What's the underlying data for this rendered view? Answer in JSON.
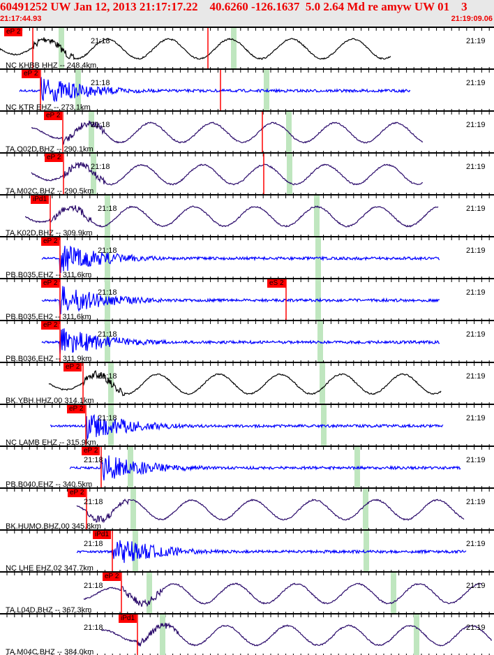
{
  "header": {
    "title": "60491252 UW Jan 12, 2013 21:17:17.22    40.6260 -126.1637  5.0 2.64 Md re amyw UW 01    3",
    "start_time": "21:17:44.93",
    "end_time": "21:19:09.06"
  },
  "colors": {
    "pick": "#ff0000",
    "phase_window": "#bfe6bf",
    "black": "#000000",
    "blue": "#0000ff",
    "purple": "#2a0a6a"
  },
  "minute_labels": [
    "21:18",
    "21:19"
  ],
  "traces": [
    {
      "label": "NC KHBB HHZ -- 248.4km",
      "pick": "eP 2",
      "color": "black"
    },
    {
      "label": "NC KTR EHZ -- 273.1km",
      "pick": "eP 2",
      "color": "blue"
    },
    {
      "label": "TA.Q02D.BHZ -- 290.1km",
      "pick": "eP 2",
      "color": "purple"
    },
    {
      "label": "TA.M02C.BHZ -- 290.5km",
      "pick": "eP 2",
      "color": "purple"
    },
    {
      "label": "TA.K02D.BHZ -- 309.9km",
      "pick": "iPd1",
      "color": "purple"
    },
    {
      "label": "PB.B035.EHZ -- 311.6km",
      "pick": "eP 2",
      "color": "blue"
    },
    {
      "label": "PB.B035.EH2 -- 311.6km",
      "pick": "eP 2",
      "pick2": "eS 2",
      "color": "blue"
    },
    {
      "label": "PB.B036.EHZ -- 311.9km",
      "pick": "eP 2",
      "color": "blue"
    },
    {
      "label": "BK.YBH.HHZ.00 314.1km",
      "pick": "eP 2",
      "color": "black"
    },
    {
      "label": "NC LAMB EHZ -- 315.9km",
      "pick": "eP 2",
      "color": "blue"
    },
    {
      "label": "PB.B040.EHZ -- 340.5km",
      "pick": "eP 2",
      "color": "blue"
    },
    {
      "label": "BK.HUMO.BHZ.00 345.8km",
      "pick": "eP 2",
      "color": "purple"
    },
    {
      "label": "NC LHE EHZ 02 347.7km",
      "pick": "iPd1",
      "color": "blue"
    },
    {
      "label": "TA.L04D.BHZ -- 367.3km",
      "pick": "eP 2",
      "color": "purple"
    },
    {
      "label": "TA.M04C.BHZ -- 384.0km",
      "pick": "iPd1",
      "color": "purple"
    }
  ]
}
